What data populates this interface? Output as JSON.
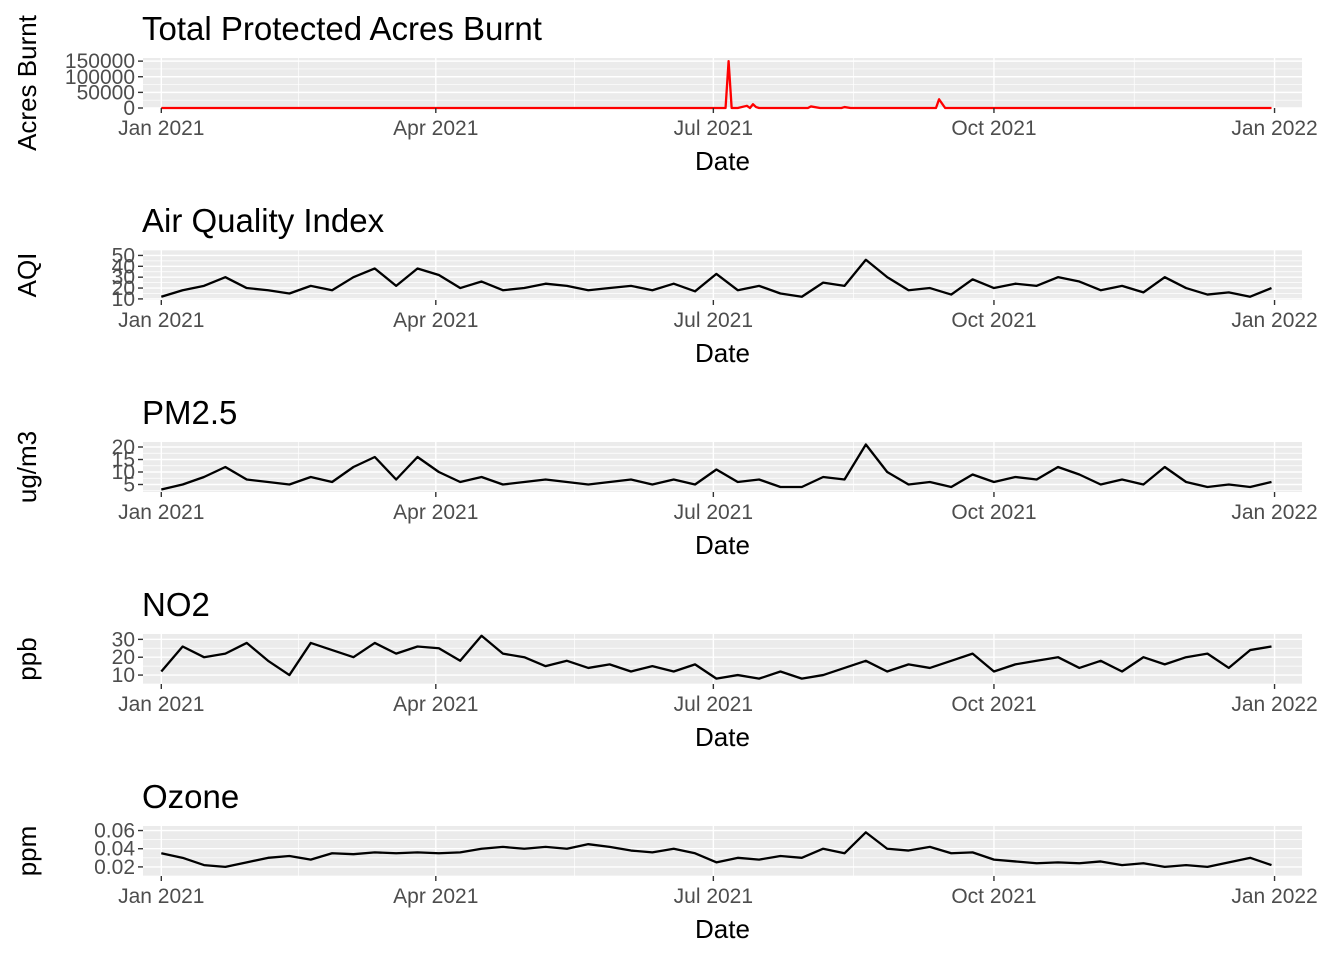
{
  "chart_data": [
    {
      "type": "line",
      "title": "Total Protected Acres Burnt",
      "xlabel": "Date",
      "ylabel": "Acres Burnt",
      "x_ticks": [
        "Jan 2021",
        "Apr 2021",
        "Jul 2021",
        "Oct 2021",
        "Jan 2022"
      ],
      "y_ticks": [
        "0",
        "50000",
        "100000",
        "150000"
      ],
      "ylim": [
        0,
        160000
      ],
      "grid": true,
      "line_color": "#ff0000",
      "series": [
        {
          "x": [
            "2021-01-01",
            "2021-06-01",
            "2021-06-25",
            "2021-07-03",
            "2021-07-05",
            "2021-07-06",
            "2021-07-07",
            "2021-07-09",
            "2021-07-12",
            "2021-07-13",
            "2021-07-14",
            "2021-07-15",
            "2021-07-16",
            "2021-07-18",
            "2021-08-01",
            "2021-08-02",
            "2021-08-05",
            "2021-08-12",
            "2021-08-13",
            "2021-08-15",
            "2021-09-10",
            "2021-09-12",
            "2021-09-13",
            "2021-09-15",
            "2021-12-31"
          ],
          "values": [
            0,
            0,
            0,
            0,
            0,
            150000,
            0,
            0,
            7000,
            0,
            12000,
            3000,
            0,
            0,
            0,
            5000,
            0,
            0,
            3000,
            0,
            0,
            0,
            28000,
            0,
            0
          ]
        }
      ]
    },
    {
      "type": "line",
      "title": "Air Quality Index",
      "xlabel": "Date",
      "ylabel": "AQI",
      "x_ticks": [
        "Jan 2021",
        "Apr 2021",
        "Jul 2021",
        "Oct 2021",
        "Jan 2022"
      ],
      "y_ticks": [
        "10",
        "20",
        "30",
        "40",
        "50"
      ],
      "ylim": [
        9,
        55
      ],
      "grid": true,
      "line_color": "#000000",
      "series": [
        {
          "x": [
            "2021-01-01",
            "2021-01-08",
            "2021-01-15",
            "2021-01-22",
            "2021-01-29",
            "2021-02-05",
            "2021-02-12",
            "2021-02-19",
            "2021-02-26",
            "2021-03-05",
            "2021-03-12",
            "2021-03-19",
            "2021-03-26",
            "2021-04-02",
            "2021-04-09",
            "2021-04-16",
            "2021-04-23",
            "2021-04-30",
            "2021-05-07",
            "2021-05-14",
            "2021-05-21",
            "2021-05-28",
            "2021-06-04",
            "2021-06-11",
            "2021-06-18",
            "2021-06-25",
            "2021-07-02",
            "2021-07-09",
            "2021-07-16",
            "2021-07-23",
            "2021-07-30",
            "2021-08-06",
            "2021-08-13",
            "2021-08-20",
            "2021-08-27",
            "2021-09-03",
            "2021-09-10",
            "2021-09-17",
            "2021-09-24",
            "2021-10-01",
            "2021-10-08",
            "2021-10-15",
            "2021-10-22",
            "2021-10-29",
            "2021-11-05",
            "2021-11-12",
            "2021-11-19",
            "2021-11-26",
            "2021-12-03",
            "2021-12-10",
            "2021-12-17",
            "2021-12-24",
            "2021-12-31"
          ],
          "values": [
            12,
            18,
            22,
            30,
            20,
            18,
            15,
            22,
            18,
            30,
            38,
            22,
            38,
            32,
            20,
            26,
            18,
            20,
            24,
            22,
            18,
            20,
            22,
            18,
            24,
            17,
            33,
            18,
            22,
            15,
            12,
            25,
            22,
            46,
            30,
            18,
            20,
            14,
            28,
            20,
            24,
            22,
            30,
            26,
            18,
            22,
            16,
            30,
            20,
            14,
            16,
            12,
            20
          ]
        }
      ]
    },
    {
      "type": "line",
      "title": "PM2.5",
      "xlabel": "Date",
      "ylabel": "ug/m3",
      "x_ticks": [
        "Jan 2021",
        "Apr 2021",
        "Jul 2021",
        "Oct 2021",
        "Jan 2022"
      ],
      "y_ticks": [
        "5",
        "10",
        "15",
        "20"
      ],
      "ylim": [
        2,
        22
      ],
      "grid": true,
      "line_color": "#000000",
      "series": [
        {
          "x": [
            "2021-01-01",
            "2021-01-08",
            "2021-01-15",
            "2021-01-22",
            "2021-01-29",
            "2021-02-05",
            "2021-02-12",
            "2021-02-19",
            "2021-02-26",
            "2021-03-05",
            "2021-03-12",
            "2021-03-19",
            "2021-03-26",
            "2021-04-02",
            "2021-04-09",
            "2021-04-16",
            "2021-04-23",
            "2021-04-30",
            "2021-05-07",
            "2021-05-14",
            "2021-05-21",
            "2021-05-28",
            "2021-06-04",
            "2021-06-11",
            "2021-06-18",
            "2021-06-25",
            "2021-07-02",
            "2021-07-09",
            "2021-07-16",
            "2021-07-23",
            "2021-07-30",
            "2021-08-06",
            "2021-08-13",
            "2021-08-20",
            "2021-08-27",
            "2021-09-03",
            "2021-09-10",
            "2021-09-17",
            "2021-09-24",
            "2021-10-01",
            "2021-10-08",
            "2021-10-15",
            "2021-10-22",
            "2021-10-29",
            "2021-11-05",
            "2021-11-12",
            "2021-11-19",
            "2021-11-26",
            "2021-12-03",
            "2021-12-10",
            "2021-12-17",
            "2021-12-24",
            "2021-12-31"
          ],
          "values": [
            3,
            5,
            8,
            12,
            7,
            6,
            5,
            8,
            6,
            12,
            16,
            7,
            16,
            10,
            6,
            8,
            5,
            6,
            7,
            6,
            5,
            6,
            7,
            5,
            7,
            5,
            11,
            6,
            7,
            4,
            4,
            8,
            7,
            21,
            10,
            5,
            6,
            4,
            9,
            6,
            8,
            7,
            12,
            9,
            5,
            7,
            5,
            12,
            6,
            4,
            5,
            4,
            6
          ]
        }
      ]
    },
    {
      "type": "line",
      "title": "NO2",
      "xlabel": "Date",
      "ylabel": "ppb",
      "x_ticks": [
        "Jan 2021",
        "Apr 2021",
        "Jul 2021",
        "Oct 2021",
        "Jan 2022"
      ],
      "y_ticks": [
        "10",
        "20",
        "30"
      ],
      "ylim": [
        5,
        33
      ],
      "grid": true,
      "line_color": "#000000",
      "series": [
        {
          "x": [
            "2021-01-01",
            "2021-01-08",
            "2021-01-15",
            "2021-01-22",
            "2021-01-29",
            "2021-02-05",
            "2021-02-12",
            "2021-02-19",
            "2021-02-26",
            "2021-03-05",
            "2021-03-12",
            "2021-03-19",
            "2021-03-26",
            "2021-04-02",
            "2021-04-09",
            "2021-04-16",
            "2021-04-23",
            "2021-04-30",
            "2021-05-07",
            "2021-05-14",
            "2021-05-21",
            "2021-05-28",
            "2021-06-04",
            "2021-06-11",
            "2021-06-18",
            "2021-06-25",
            "2021-07-02",
            "2021-07-09",
            "2021-07-16",
            "2021-07-23",
            "2021-07-30",
            "2021-08-06",
            "2021-08-13",
            "2021-08-20",
            "2021-08-27",
            "2021-09-03",
            "2021-09-10",
            "2021-09-17",
            "2021-09-24",
            "2021-10-01",
            "2021-10-08",
            "2021-10-15",
            "2021-10-22",
            "2021-10-29",
            "2021-11-05",
            "2021-11-12",
            "2021-11-19",
            "2021-11-26",
            "2021-12-03",
            "2021-12-10",
            "2021-12-17",
            "2021-12-24",
            "2021-12-31"
          ],
          "values": [
            12,
            26,
            20,
            22,
            28,
            18,
            10,
            28,
            24,
            20,
            28,
            22,
            26,
            25,
            18,
            32,
            22,
            20,
            15,
            18,
            14,
            16,
            12,
            15,
            12,
            16,
            8,
            10,
            8,
            12,
            8,
            10,
            14,
            18,
            12,
            16,
            14,
            18,
            22,
            12,
            16,
            18,
            20,
            14,
            18,
            12,
            20,
            16,
            20,
            22,
            14,
            24,
            26
          ]
        }
      ]
    },
    {
      "type": "line",
      "title": "Ozone",
      "xlabel": "Date",
      "ylabel": "ppm",
      "x_ticks": [
        "Jan 2021",
        "Apr 2021",
        "Jul 2021",
        "Oct 2021",
        "Jan 2022"
      ],
      "y_ticks": [
        "0.02",
        "0.04",
        "0.06"
      ],
      "ylim": [
        0.01,
        0.065
      ],
      "grid": true,
      "line_color": "#000000",
      "series": [
        {
          "x": [
            "2021-01-01",
            "2021-01-08",
            "2021-01-15",
            "2021-01-22",
            "2021-01-29",
            "2021-02-05",
            "2021-02-12",
            "2021-02-19",
            "2021-02-26",
            "2021-03-05",
            "2021-03-12",
            "2021-03-19",
            "2021-03-26",
            "2021-04-02",
            "2021-04-09",
            "2021-04-16",
            "2021-04-23",
            "2021-04-30",
            "2021-05-07",
            "2021-05-14",
            "2021-05-21",
            "2021-05-28",
            "2021-06-04",
            "2021-06-11",
            "2021-06-18",
            "2021-06-25",
            "2021-07-02",
            "2021-07-09",
            "2021-07-16",
            "2021-07-23",
            "2021-07-30",
            "2021-08-06",
            "2021-08-13",
            "2021-08-20",
            "2021-08-27",
            "2021-09-03",
            "2021-09-10",
            "2021-09-17",
            "2021-09-24",
            "2021-10-01",
            "2021-10-08",
            "2021-10-15",
            "2021-10-22",
            "2021-10-29",
            "2021-11-05",
            "2021-11-12",
            "2021-11-19",
            "2021-11-26",
            "2021-12-03",
            "2021-12-10",
            "2021-12-17",
            "2021-12-24",
            "2021-12-31"
          ],
          "values": [
            0.035,
            0.03,
            0.022,
            0.02,
            0.025,
            0.03,
            0.032,
            0.028,
            0.035,
            0.034,
            0.036,
            0.035,
            0.036,
            0.035,
            0.036,
            0.04,
            0.042,
            0.04,
            0.042,
            0.04,
            0.045,
            0.042,
            0.038,
            0.036,
            0.04,
            0.035,
            0.025,
            0.03,
            0.028,
            0.032,
            0.03,
            0.04,
            0.035,
            0.058,
            0.04,
            0.038,
            0.042,
            0.035,
            0.036,
            0.028,
            0.026,
            0.024,
            0.025,
            0.024,
            0.026,
            0.022,
            0.024,
            0.02,
            0.022,
            0.02,
            0.025,
            0.03,
            0.022
          ]
        }
      ]
    }
  ]
}
